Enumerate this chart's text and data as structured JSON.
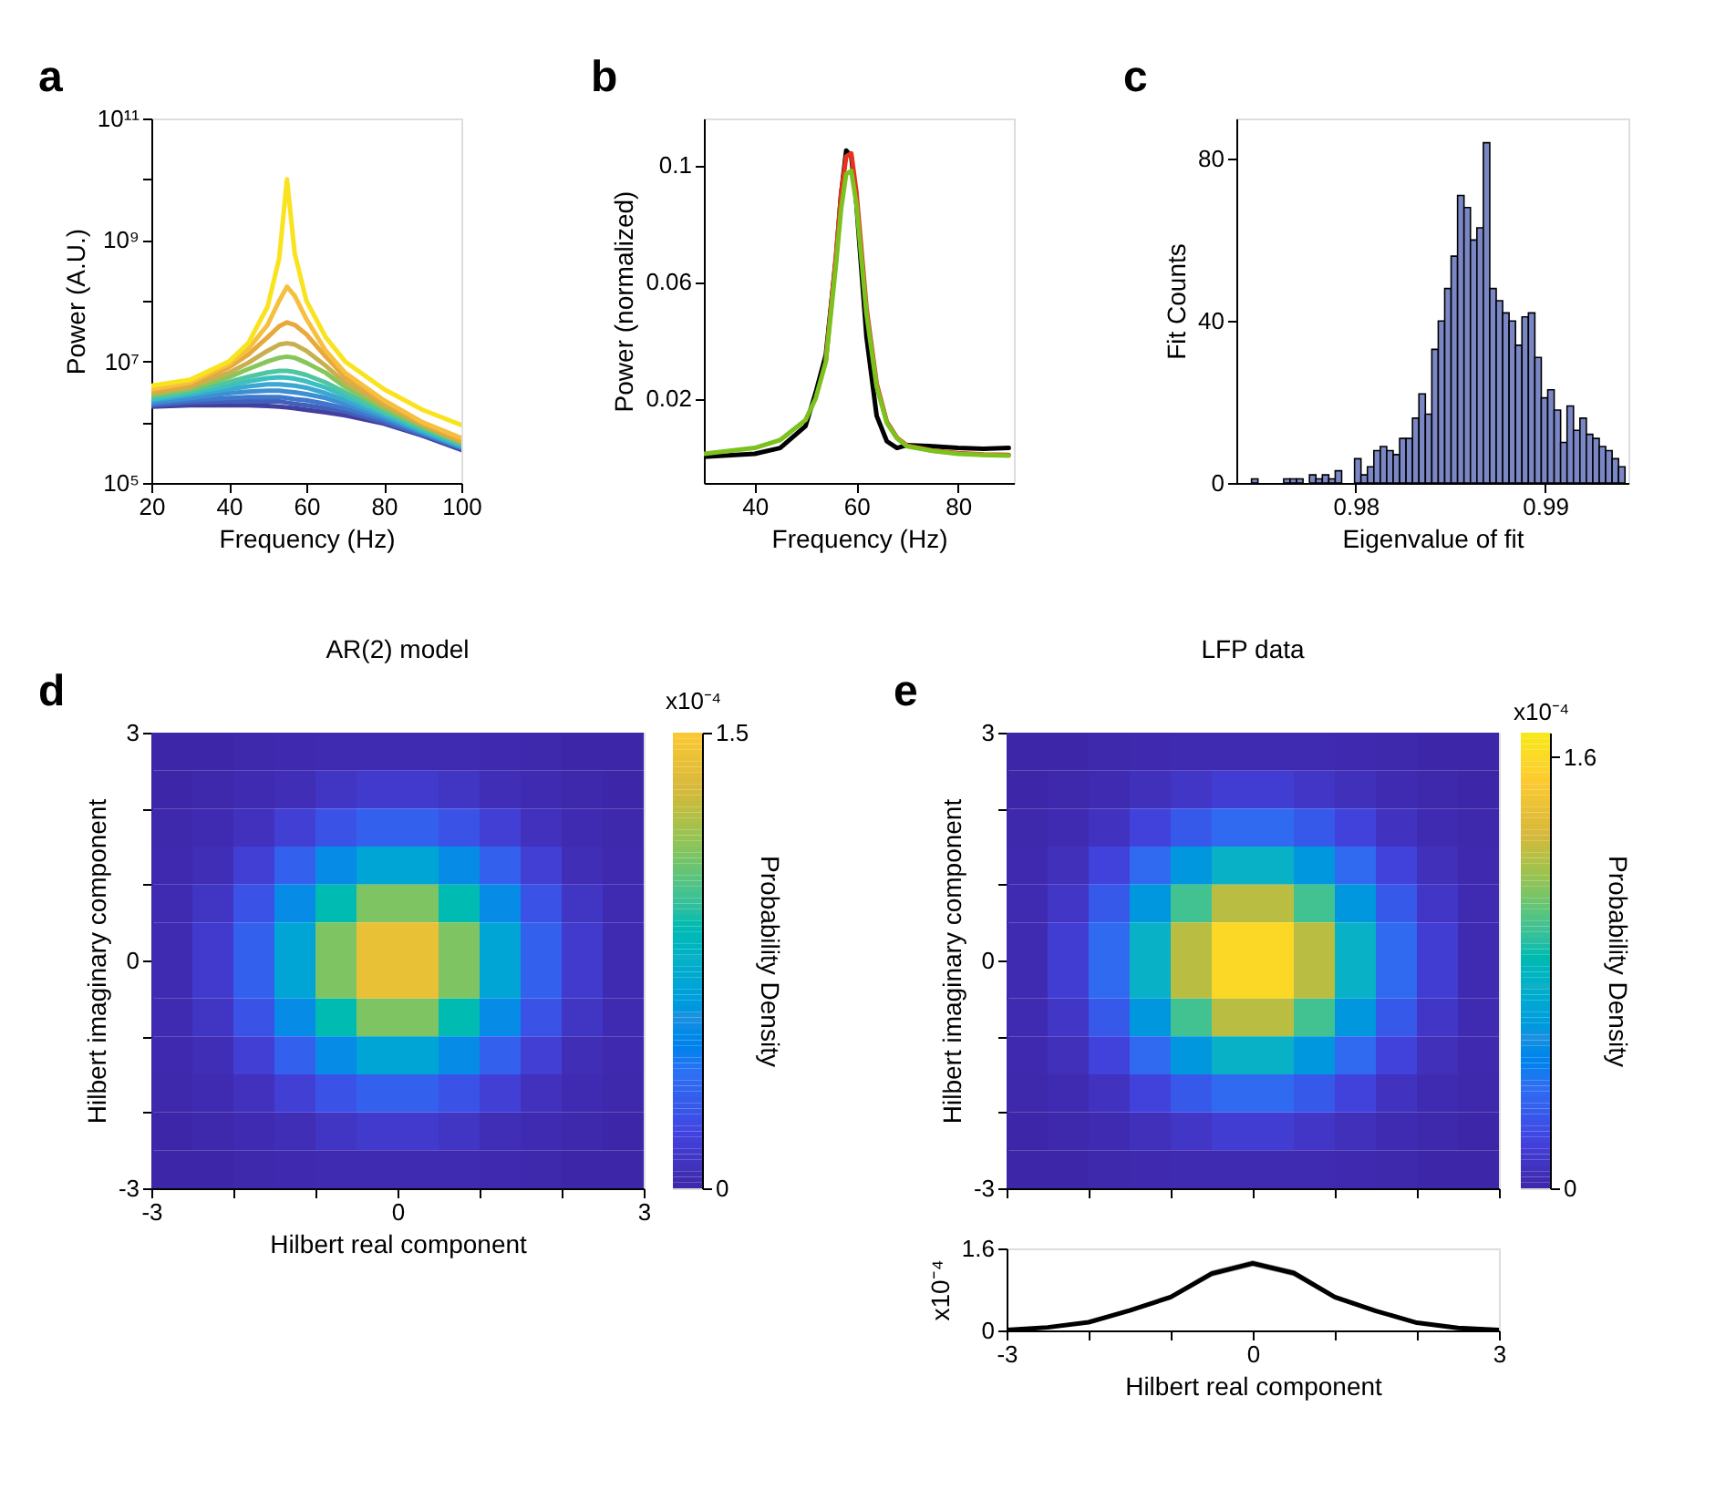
{
  "chart_data": [
    {
      "type": "line",
      "annotations": [
        "a"
      ],
      "xlabel": "Frequency (Hz)",
      "ylabel": "Power (A.U.)",
      "log": "y",
      "grid": false,
      "x": [
        20,
        30,
        40,
        45,
        50,
        53,
        55,
        57,
        60,
        65,
        70,
        80,
        90,
        100
      ],
      "xlim": [
        20,
        100
      ],
      "xticks": [
        20,
        40,
        60,
        80,
        100
      ],
      "ylim": [
        100000.0,
        100000000000.0
      ],
      "yticks": [
        {
          "value": 100000.0,
          "label": "10⁵"
        },
        {
          "value": 1000000.0,
          "label": null
        },
        {
          "value": 10000000.0,
          "label": "10⁷"
        },
        {
          "value": 100000000.0,
          "label": null
        },
        {
          "value": 1000000000.0,
          "label": "10⁹"
        },
        {
          "value": 10000000000.0,
          "label": null
        },
        {
          "value": 100000000000.0,
          "label": "10¹¹"
        }
      ],
      "series": [
        {
          "color": "#433f9e",
          "values": [
            1800000.0,
            1900000.0,
            1900000.0,
            1900000.0,
            1850000.0,
            1800000.0,
            1750000.0,
            1700000.0,
            1600000.0,
            1450000.0,
            1300000.0,
            950000.0,
            600000.0,
            350000.0
          ]
        },
        {
          "color": "#4260bb",
          "values": [
            1900000.0,
            2100000.0,
            2200000.0,
            2200000.0,
            2200000.0,
            2200000.0,
            2100000.0,
            2000000.0,
            1900000.0,
            1700000.0,
            1500000.0,
            1000000.0,
            620000.0,
            370000.0
          ]
        },
        {
          "color": "#3f77cc",
          "values": [
            2000000.0,
            2300000.0,
            2500000.0,
            2600000.0,
            2600000.0,
            2600000.0,
            2500000.0,
            2400000.0,
            2300000.0,
            2000000.0,
            1700000.0,
            1100000.0,
            650000.0,
            380000.0
          ]
        },
        {
          "color": "#3d8fd4",
          "values": [
            2100000.0,
            2500000.0,
            3000000.0,
            3200000.0,
            3300000.0,
            3300000.0,
            3200000.0,
            3100000.0,
            2900000.0,
            2500000.0,
            2000000.0,
            1200000.0,
            680000.0,
            390000.0
          ]
        },
        {
          "color": "#3aa8d0",
          "values": [
            2300000.0,
            2800000.0,
            3500000.0,
            3900000.0,
            4200000.0,
            4200000.0,
            4100000.0,
            4000000.0,
            3700000.0,
            3000000.0,
            2300000.0,
            1300000.0,
            700000.0,
            400000.0
          ]
        },
        {
          "color": "#3bbfc0",
          "values": [
            2400000.0,
            3000000.0,
            4000000.0,
            4700000.0,
            5300000.0,
            5500000.0,
            5400000.0,
            5200000.0,
            4700000.0,
            3700000.0,
            2700000.0,
            1400000.0,
            750000.0,
            420000.0
          ]
        },
        {
          "color": "#4fc6a0",
          "values": [
            2600000.0,
            3200000.0,
            4600000.0,
            5600000.0,
            6600000.0,
            7000000.0,
            7000000.0,
            6700000.0,
            6000000.0,
            4500000.0,
            3100000.0,
            1500000.0,
            800000.0,
            440000.0
          ]
        },
        {
          "color": "#86c65a",
          "values": [
            2800000.0,
            3500000.0,
            5500000.0,
            7500000.0,
            10000000.0,
            11500000.0,
            12000000.0,
            11500000.0,
            9500000.0,
            6500000.0,
            3800000.0,
            1700000.0,
            850000.0,
            460000.0
          ]
        },
        {
          "color": "#c6b050",
          "values": [
            3000000.0,
            3800000.0,
            6500000.0,
            9500000.0,
            15000000.0,
            19000000.0,
            20000000.0,
            19000000.0,
            15000000.0,
            8500000.0,
            4500000.0,
            1900000.0,
            900000.0,
            480000.0
          ]
        },
        {
          "color": "#e8a83a",
          "values": [
            3200000.0,
            4200000.0,
            8000000.0,
            13000000.0,
            25000000.0,
            38000000.0,
            44000000.0,
            40000000.0,
            28000000.0,
            12000000.0,
            5500000.0,
            2100000.0,
            950000.0,
            500000.0
          ]
        },
        {
          "color": "#f5c040",
          "values": [
            3500000.0,
            4500000.0,
            9000000.0,
            16000000.0,
            40000000.0,
            100000000.0,
            170000000.0,
            120000000.0,
            50000000.0,
            15000000.0,
            6500000.0,
            2300000.0,
            1000000.0,
            550000.0
          ]
        },
        {
          "color": "#f9e31f",
          "values": [
            4000000.0,
            5000000.0,
            10000000.0,
            20000000.0,
            80000000.0,
            500000000.0,
            10000000000.0,
            600000000.0,
            100000000.0,
            25000000.0,
            10000000.0,
            3500000.0,
            1600000.0,
            900000.0
          ]
        }
      ]
    },
    {
      "type": "line",
      "annotations": [
        "b"
      ],
      "xlabel": "Frequency (Hz)",
      "ylabel": "Power (normalized)",
      "grid": false,
      "x": [
        30,
        40,
        45,
        50,
        52,
        54,
        56,
        57,
        58,
        59,
        60,
        62,
        64,
        66,
        68,
        70,
        75,
        80,
        85,
        90
      ],
      "xlim": [
        30,
        91
      ],
      "xticks": [
        40,
        60,
        80
      ],
      "ylim": [
        -0.009,
        0.116
      ],
      "yticks": [
        0.02,
        0.06,
        0.1
      ],
      "series": [
        {
          "color": "#000000",
          "values": [
            0.0,
            0.001,
            0.003,
            0.0105,
            0.022,
            0.035,
            0.068,
            0.09,
            0.105,
            0.103,
            0.087,
            0.041,
            0.014,
            0.0053,
            0.003,
            0.004,
            0.0036,
            0.003,
            0.0027,
            0.003
          ]
        },
        {
          "color": "#e8321e",
          "values": [
            null,
            null,
            null,
            null,
            null,
            0.033,
            0.069,
            0.09,
            0.103,
            0.104,
            0.091,
            0.051,
            0.025,
            0.012,
            0.0065,
            0.0038,
            0.0021,
            0.0012,
            0.0008,
            0.0006
          ]
        },
        {
          "color": "#7cc21e",
          "values": [
            0.001,
            0.003,
            0.0057,
            0.0126,
            0.02,
            0.0326,
            0.066,
            0.085,
            0.097,
            0.098,
            0.087,
            0.049,
            0.024,
            0.0116,
            0.0063,
            0.0036,
            0.002,
            0.001,
            0.0006,
            0.0004
          ]
        }
      ]
    },
    {
      "type": "histogram",
      "annotations": [
        "c"
      ],
      "xlabel": "Eigenvalue of fit",
      "ylabel": "Fit Counts",
      "grid": false,
      "color": "#7b86c4",
      "bins": [
        0.9745,
        0.97484,
        0.97518,
        0.97552,
        0.97586,
        0.9762,
        0.97654,
        0.97688,
        0.97722,
        0.97756,
        0.9779,
        0.97824,
        0.97858,
        0.97892,
        0.97926,
        0.9796,
        0.97994,
        0.98028,
        0.98062,
        0.98096,
        0.9813,
        0.98164,
        0.98198,
        0.98232,
        0.98266,
        0.983,
        0.98334,
        0.98368,
        0.98402,
        0.98436,
        0.9847,
        0.98504,
        0.98538,
        0.98572,
        0.98606,
        0.9864,
        0.98674,
        0.98708,
        0.98742,
        0.98776,
        0.9881,
        0.98844,
        0.98878,
        0.98912,
        0.98946,
        0.9898,
        0.99014,
        0.99048,
        0.99082,
        0.99116,
        0.9915,
        0.99184,
        0.99218,
        0.99252,
        0.99286,
        0.9932,
        0.99354,
        0.99388,
        0.99422
      ],
      "values": [
        1,
        0,
        0,
        0,
        0,
        1,
        1,
        1,
        0,
        2,
        1,
        2,
        1,
        3,
        0,
        0,
        6,
        2,
        4,
        8,
        9,
        8,
        7,
        11,
        11,
        16,
        22,
        17,
        33,
        40,
        48,
        56,
        71,
        68,
        60,
        63,
        84,
        48,
        45,
        42,
        40,
        34,
        41,
        42,
        31,
        21,
        23,
        18,
        10,
        19,
        13,
        16,
        12,
        11,
        9,
        8,
        6,
        4
      ],
      "xlim": [
        0.9737,
        0.9944
      ],
      "xticks": [
        0.98,
        0.99
      ],
      "ylim": [
        0,
        90
      ],
      "yticks": [
        0,
        40,
        80
      ]
    },
    {
      "type": "heatmap",
      "title": "AR(2) model",
      "annotations": [
        "d",
        "x10⁻⁴"
      ],
      "xlabel": "Hilbert real component",
      "ylabel": "Hilbert imaginary component",
      "clabel": "Probability Density",
      "x": [
        -2.75,
        -2.25,
        -1.75,
        -1.25,
        -0.75,
        -0.25,
        0.25,
        0.75,
        1.25,
        1.75,
        2.25,
        2.75
      ],
      "y": [
        2.75,
        2.25,
        1.75,
        1.25,
        0.75,
        0.25,
        -0.25,
        -0.75,
        -1.25,
        -1.75,
        -2.25,
        -2.75
      ],
      "xlim": [
        -3,
        3
      ],
      "ylim": [
        -3,
        3
      ],
      "xticks": [
        -3,
        {
          "value": -2,
          "label": null
        },
        {
          "value": -1,
          "label": null
        },
        0,
        {
          "value": 1,
          "label": null
        },
        {
          "value": 2,
          "label": null
        },
        3
      ],
      "yticks": [
        -3,
        {
          "value": -2,
          "label": null
        },
        {
          "value": -1,
          "label": null
        },
        0,
        {
          "value": 1,
          "label": null
        },
        {
          "value": 2,
          "label": null
        },
        3
      ],
      "clim": [
        0,
        1.5
      ],
      "cticks": [
        0,
        1.5
      ],
      "cells": [
        [
          0.0,
          0.0,
          0.01,
          0.02,
          0.03,
          0.03,
          0.03,
          0.03,
          0.02,
          0.01,
          0.0,
          0.0
        ],
        [
          0.0,
          0.01,
          0.03,
          0.05,
          0.09,
          0.12,
          0.12,
          0.09,
          0.05,
          0.03,
          0.01,
          0.0
        ],
        [
          0.01,
          0.03,
          0.07,
          0.15,
          0.24,
          0.31,
          0.31,
          0.24,
          0.15,
          0.07,
          0.03,
          0.01
        ],
        [
          0.02,
          0.05,
          0.15,
          0.31,
          0.52,
          0.67,
          0.67,
          0.52,
          0.31,
          0.15,
          0.05,
          0.02
        ],
        [
          0.03,
          0.09,
          0.24,
          0.52,
          0.86,
          1.1,
          1.1,
          0.86,
          0.52,
          0.24,
          0.09,
          0.03
        ],
        [
          0.03,
          0.12,
          0.31,
          0.67,
          1.1,
          1.41,
          1.41,
          1.1,
          0.67,
          0.31,
          0.12,
          0.03
        ],
        [
          0.03,
          0.12,
          0.31,
          0.67,
          1.1,
          1.41,
          1.41,
          1.1,
          0.67,
          0.31,
          0.12,
          0.03
        ],
        [
          0.03,
          0.09,
          0.24,
          0.52,
          0.86,
          1.1,
          1.1,
          0.86,
          0.52,
          0.24,
          0.09,
          0.03
        ],
        [
          0.02,
          0.05,
          0.15,
          0.31,
          0.52,
          0.67,
          0.67,
          0.52,
          0.31,
          0.15,
          0.05,
          0.02
        ],
        [
          0.01,
          0.03,
          0.07,
          0.15,
          0.24,
          0.31,
          0.31,
          0.24,
          0.15,
          0.07,
          0.03,
          0.01
        ],
        [
          0.0,
          0.01,
          0.03,
          0.05,
          0.09,
          0.12,
          0.12,
          0.09,
          0.05,
          0.03,
          0.01,
          0.0
        ],
        [
          0.0,
          0.0,
          0.01,
          0.02,
          0.03,
          0.03,
          0.03,
          0.03,
          0.02,
          0.01,
          0.0,
          0.0
        ]
      ]
    },
    {
      "type": "heatmap",
      "title": "LFP data",
      "annotations": [
        "e",
        "x10⁻⁴"
      ],
      "ylabel": "Hilbert imaginary component",
      "clabel": "Probability Density",
      "tick_labels": "y",
      "x": [
        -2.75,
        -2.25,
        -1.75,
        -1.25,
        -0.75,
        -0.25,
        0.25,
        0.75,
        1.25,
        1.75,
        2.25,
        2.75
      ],
      "y": [
        2.75,
        2.25,
        1.75,
        1.25,
        0.75,
        0.25,
        -0.25,
        -0.75,
        -1.25,
        -1.75,
        -2.25,
        -2.75
      ],
      "xlim": [
        -3,
        3
      ],
      "ylim": [
        -3,
        3
      ],
      "xticks": [
        {
          "value": -3,
          "label": null
        },
        {
          "value": -2,
          "label": null
        },
        {
          "value": -1,
          "label": null
        },
        {
          "value": 0,
          "label": null
        },
        {
          "value": 1,
          "label": null
        },
        {
          "value": 2,
          "label": null
        },
        {
          "value": 3,
          "label": null
        }
      ],
      "yticks": [
        -3,
        {
          "value": -2,
          "label": null
        },
        {
          "value": -1,
          "label": null
        },
        0,
        {
          "value": 1,
          "label": null
        },
        {
          "value": 2,
          "label": null
        },
        3
      ],
      "clim": [
        0,
        1.69
      ],
      "cticks": [
        0,
        1.6
      ],
      "cells": [
        [
          0.0,
          0.0,
          0.01,
          0.02,
          0.03,
          0.03,
          0.03,
          0.03,
          0.02,
          0.01,
          0.0,
          0.0
        ],
        [
          0.0,
          0.01,
          0.03,
          0.06,
          0.1,
          0.14,
          0.14,
          0.1,
          0.06,
          0.03,
          0.01,
          0.0
        ],
        [
          0.01,
          0.03,
          0.08,
          0.17,
          0.27,
          0.35,
          0.35,
          0.27,
          0.17,
          0.08,
          0.03,
          0.01
        ],
        [
          0.02,
          0.06,
          0.17,
          0.35,
          0.59,
          0.76,
          0.76,
          0.59,
          0.35,
          0.17,
          0.06,
          0.02
        ],
        [
          0.03,
          0.1,
          0.27,
          0.59,
          0.97,
          1.24,
          1.24,
          0.97,
          0.59,
          0.27,
          0.1,
          0.03
        ],
        [
          0.03,
          0.14,
          0.35,
          0.76,
          1.24,
          1.59,
          1.59,
          1.24,
          0.76,
          0.35,
          0.14,
          0.03
        ],
        [
          0.03,
          0.14,
          0.35,
          0.76,
          1.24,
          1.59,
          1.59,
          1.24,
          0.76,
          0.35,
          0.14,
          0.03
        ],
        [
          0.03,
          0.1,
          0.27,
          0.59,
          0.97,
          1.24,
          1.24,
          0.97,
          0.59,
          0.27,
          0.1,
          0.03
        ],
        [
          0.02,
          0.06,
          0.17,
          0.35,
          0.59,
          0.76,
          0.76,
          0.59,
          0.35,
          0.17,
          0.06,
          0.02
        ],
        [
          0.01,
          0.03,
          0.08,
          0.17,
          0.27,
          0.35,
          0.35,
          0.27,
          0.17,
          0.08,
          0.03,
          0.01
        ],
        [
          0.0,
          0.01,
          0.03,
          0.06,
          0.1,
          0.14,
          0.14,
          0.1,
          0.06,
          0.03,
          0.01,
          0.0
        ],
        [
          0.0,
          0.0,
          0.01,
          0.02,
          0.03,
          0.03,
          0.03,
          0.03,
          0.02,
          0.01,
          0.0,
          0.0
        ]
      ]
    },
    {
      "type": "line",
      "xlabel": "Hilbert real component",
      "ylabel": "x10⁻⁴",
      "grid": false,
      "x": [
        -3,
        -2.5,
        -2,
        -1.5,
        -1,
        -0.5,
        0,
        0.5,
        1,
        1.5,
        2,
        2.5,
        3
      ],
      "xlim": [
        -3,
        3
      ],
      "xticks": [
        -3,
        {
          "value": -2,
          "label": null
        },
        {
          "value": -1,
          "label": null
        },
        0,
        {
          "value": 1,
          "label": null
        },
        {
          "value": 2,
          "label": null
        },
        3
      ],
      "ylim": [
        0,
        1.6
      ],
      "yticks": [
        0,
        1.6
      ],
      "series": [
        {
          "color": "#000000",
          "values": [
            0.01,
            0.06,
            0.16,
            0.39,
            0.65,
            1.11,
            1.31,
            1.12,
            0.65,
            0.38,
            0.15,
            0.05,
            0.01
          ],
          "lower": [
            0.0,
            0.04,
            0.13,
            0.35,
            0.6,
            1.05,
            1.25,
            1.06,
            0.6,
            0.34,
            0.12,
            0.03,
            0.0
          ],
          "upper": [
            0.02,
            0.08,
            0.19,
            0.43,
            0.7,
            1.17,
            1.37,
            1.18,
            0.7,
            0.42,
            0.18,
            0.07,
            0.02
          ]
        }
      ]
    }
  ]
}
